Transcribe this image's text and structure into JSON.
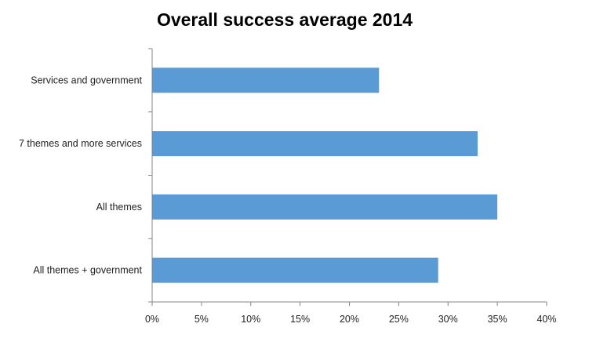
{
  "chart_data": {
    "type": "bar",
    "orientation": "horizontal",
    "title": "Overall success average 2014",
    "categories": [
      "Services and government",
      "7 themes and more services",
      "All themes",
      "All themes + government"
    ],
    "values": [
      23,
      33,
      35,
      29
    ],
    "value_unit": "%",
    "xlim": [
      0,
      40
    ],
    "xticks": [
      "0%",
      "5%",
      "10%",
      "15%",
      "20%",
      "25%",
      "30%",
      "35%",
      "40%"
    ],
    "xlabel": "",
    "ylabel": "",
    "grid": false,
    "legend": "none",
    "bar_color": "#5b9bd5",
    "axis_color": "#868686"
  }
}
